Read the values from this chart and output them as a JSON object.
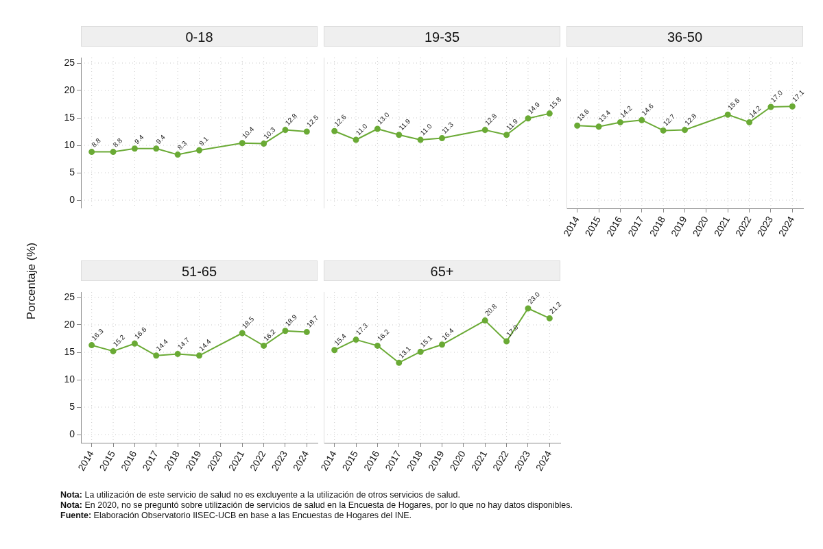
{
  "chart_data": [
    {
      "type": "line",
      "title": "0-18",
      "ylabel": "Porcentaje (%)",
      "categories": [
        "2014",
        "2015",
        "2016",
        "2017",
        "2018",
        "2019",
        "2020",
        "2021",
        "2022",
        "2023",
        "2024"
      ],
      "series": [
        {
          "color": "#6aaa35",
          "values": [
            8.8,
            8.8,
            9.4,
            9.4,
            8.3,
            9.1,
            null,
            10.4,
            10.3,
            12.8,
            12.5
          ],
          "value_labels": [
            "8.8",
            "8.8",
            "9.4",
            "9.4",
            "8.3",
            "9.1",
            null,
            "10.4",
            "10.3",
            "12.8",
            "12.5"
          ]
        }
      ],
      "ylim": [
        -1.5,
        26
      ],
      "yticks": [
        0,
        5,
        10,
        15,
        20,
        25
      ],
      "grid": true,
      "marker": "circle",
      "tick_labels": "y",
      "annotations": [
        "Nota: La utilización de este servicio de salud no es excluyente a la utilización de otros servicios de salud.",
        "Nota: En 2020, no se preguntó sobre utilización de servicios de salud en la Encuesta de Hogares, por lo que no hay datos disponibles.",
        "Fuente: Elaboración Observatorio IISEC-UCB en base a las Encuestas de Hogares del INE."
      ]
    },
    {
      "type": "line",
      "title": "19-35",
      "categories": [
        "2014",
        "2015",
        "2016",
        "2017",
        "2018",
        "2019",
        "2020",
        "2021",
        "2022",
        "2023",
        "2024"
      ],
      "series": [
        {
          "color": "#6aaa35",
          "values": [
            12.6,
            11.0,
            13.0,
            11.9,
            11.0,
            11.3,
            null,
            12.8,
            11.9,
            14.9,
            15.8
          ],
          "value_labels": [
            "12.6",
            "11.0",
            "13.0",
            "11.9",
            "11.0",
            "11.3",
            null,
            "12.8",
            "11.9",
            "14.9",
            "15.8"
          ]
        }
      ],
      "ylim": [
        -1.5,
        26
      ],
      "yticks": [
        0,
        5,
        10,
        15,
        20,
        25
      ],
      "grid": true,
      "marker": "circle",
      "tick_labels": false
    },
    {
      "type": "line",
      "title": "36-50",
      "categories": [
        "2014",
        "2015",
        "2016",
        "2017",
        "2018",
        "2019",
        "2020",
        "2021",
        "2022",
        "2023",
        "2024"
      ],
      "series": [
        {
          "color": "#6aaa35",
          "values": [
            13.6,
            13.4,
            14.2,
            14.6,
            12.7,
            12.8,
            null,
            15.6,
            14.2,
            17.0,
            17.1
          ],
          "value_labels": [
            "13.6",
            "13.4",
            "14.2",
            "14.6",
            "12.7",
            "12.8",
            null,
            "15.6",
            "14.2",
            "17.0",
            "17.1"
          ]
        }
      ],
      "ylim": [
        -1.5,
        26
      ],
      "yticks": [
        0,
        5,
        10,
        15,
        20,
        25
      ],
      "grid": true,
      "marker": "circle",
      "tick_labels": "x"
    },
    {
      "type": "line",
      "title": "51-65",
      "categories": [
        "2014",
        "2015",
        "2016",
        "2017",
        "2018",
        "2019",
        "2020",
        "2021",
        "2022",
        "2023",
        "2024"
      ],
      "series": [
        {
          "color": "#6aaa35",
          "values": [
            16.3,
            15.2,
            16.6,
            14.4,
            14.7,
            14.4,
            null,
            18.5,
            16.2,
            18.9,
            18.7
          ],
          "value_labels": [
            "16.3",
            "15.2",
            "16.6",
            "14.4",
            "14.7",
            "14.4",
            null,
            "18.5",
            "16.2",
            "18.9",
            "18.7"
          ]
        }
      ],
      "ylim": [
        -1.5,
        26
      ],
      "yticks": [
        0,
        5,
        10,
        15,
        20,
        25
      ],
      "grid": true,
      "marker": "circle"
    },
    {
      "type": "line",
      "title": "65+",
      "categories": [
        "2014",
        "2015",
        "2016",
        "2017",
        "2018",
        "2019",
        "2020",
        "2021",
        "2022",
        "2023",
        "2024"
      ],
      "series": [
        {
          "color": "#6aaa35",
          "values": [
            15.4,
            17.3,
            16.2,
            13.1,
            15.1,
            16.4,
            null,
            20.8,
            17.0,
            23.0,
            21.2
          ],
          "value_labels": [
            "15.4",
            "17.3",
            "16.2",
            "13.1",
            "15.1",
            "16.4",
            null,
            "20.8",
            "17.0",
            "23.0",
            "21.2"
          ]
        }
      ],
      "ylim": [
        -1.5,
        26
      ],
      "yticks": [
        0,
        5,
        10,
        15,
        20,
        25
      ],
      "grid": true,
      "marker": "circle",
      "tick_labels": "x"
    }
  ]
}
